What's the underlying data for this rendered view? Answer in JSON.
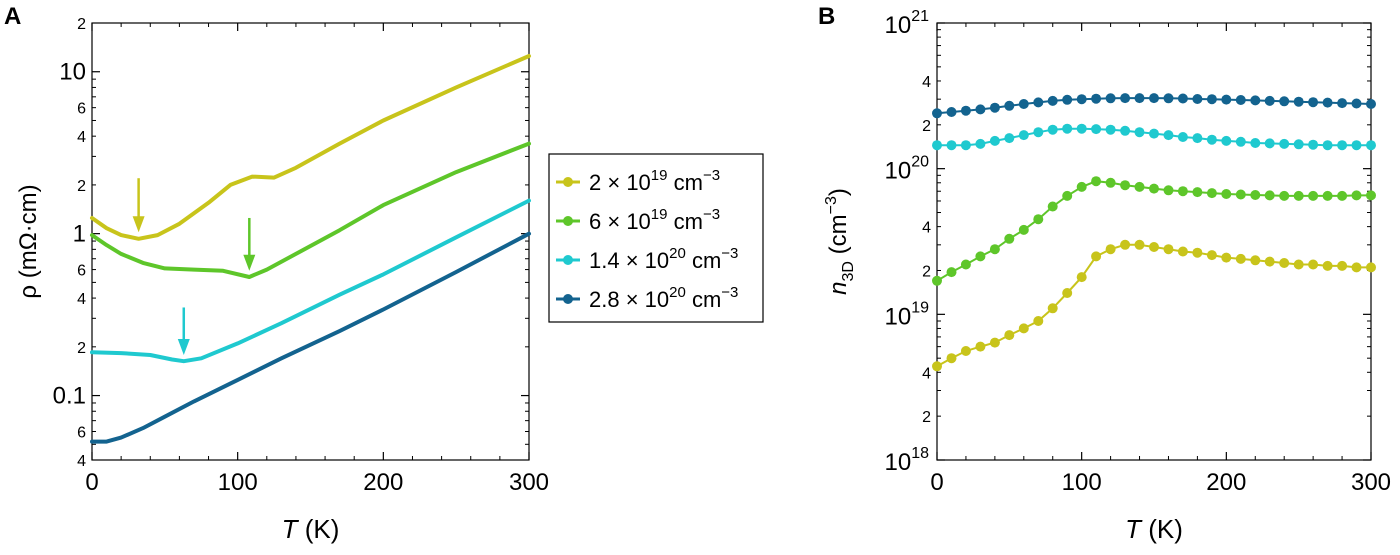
{
  "chart_data": [
    {
      "panel": "A",
      "type": "line",
      "xlabel_var": "T",
      "xlabel_unit": " (K)",
      "ylabel": "ρ (mΩ·cm)",
      "yscale": "log",
      "xlim": [
        0,
        300
      ],
      "ylim": [
        0.04,
        20
      ],
      "x_ticks": [
        0,
        100,
        200,
        300
      ],
      "y_major_ticks": [
        {
          "v": 0.1,
          "l": "0.1"
        },
        {
          "v": 1,
          "l": "1"
        },
        {
          "v": 10,
          "l": "10"
        }
      ],
      "y_minor_labels": [
        {
          "v": 0.04,
          "l": "4"
        },
        {
          "v": 0.06,
          "l": "6"
        },
        {
          "v": 0.2,
          "l": "2"
        },
        {
          "v": 0.4,
          "l": "4"
        },
        {
          "v": 0.6,
          "l": "6"
        },
        {
          "v": 2,
          "l": "2"
        },
        {
          "v": 4,
          "l": "4"
        },
        {
          "v": 6,
          "l": "6"
        },
        {
          "v": 20,
          "l": "2"
        }
      ],
      "legend": [
        {
          "mant": "2",
          "exp": "19",
          "unit_exp": "−3"
        },
        {
          "mant": "6",
          "exp": "19",
          "unit_exp": "−3"
        },
        {
          "mant": "1.4",
          "exp": "20",
          "unit_exp": "−3"
        },
        {
          "mant": "2.8",
          "exp": "20",
          "unit_exp": "−3"
        }
      ],
      "legend_placement": "right",
      "series": [
        {
          "color": "#c8c41b",
          "points": [
            [
              0,
              1.25
            ],
            [
              10,
              1.08
            ],
            [
              20,
              0.98
            ],
            [
              32,
              0.93
            ],
            [
              45,
              0.98
            ],
            [
              60,
              1.15
            ],
            [
              80,
              1.55
            ],
            [
              95,
              2.0
            ],
            [
              110,
              2.25
            ],
            [
              125,
              2.22
            ],
            [
              140,
              2.55
            ],
            [
              170,
              3.6
            ],
            [
              200,
              5.0
            ],
            [
              250,
              8.0
            ],
            [
              300,
              12.5
            ]
          ]
        },
        {
          "color": "#5ec62a",
          "points": [
            [
              0,
              0.98
            ],
            [
              10,
              0.85
            ],
            [
              20,
              0.75
            ],
            [
              35,
              0.66
            ],
            [
              50,
              0.61
            ],
            [
              70,
              0.6
            ],
            [
              90,
              0.59
            ],
            [
              108,
              0.54
            ],
            [
              120,
              0.6
            ],
            [
              140,
              0.75
            ],
            [
              170,
              1.05
            ],
            [
              200,
              1.5
            ],
            [
              250,
              2.4
            ],
            [
              300,
              3.6
            ]
          ]
        },
        {
          "color": "#1fc9cf",
          "points": [
            [
              0,
              0.185
            ],
            [
              20,
              0.183
            ],
            [
              40,
              0.178
            ],
            [
              55,
              0.167
            ],
            [
              63,
              0.163
            ],
            [
              75,
              0.17
            ],
            [
              100,
              0.21
            ],
            [
              130,
              0.28
            ],
            [
              170,
              0.42
            ],
            [
              200,
              0.56
            ],
            [
              250,
              0.95
            ],
            [
              300,
              1.6
            ]
          ]
        },
        {
          "color": "#13638f",
          "points": [
            [
              0,
              0.052
            ],
            [
              10,
              0.052
            ],
            [
              20,
              0.055
            ],
            [
              35,
              0.063
            ],
            [
              50,
              0.074
            ],
            [
              70,
              0.092
            ],
            [
              100,
              0.125
            ],
            [
              130,
              0.17
            ],
            [
              170,
              0.25
            ],
            [
              200,
              0.34
            ],
            [
              250,
              0.58
            ],
            [
              300,
              1.0
            ]
          ]
        }
      ],
      "arrows": [
        {
          "color": "#c8c41b",
          "x": 32,
          "y_tail": 2.2,
          "y_head": 1.02
        },
        {
          "color": "#5ec62a",
          "x": 108,
          "y_tail": 1.25,
          "y_head": 0.59
        },
        {
          "color": "#1fc9cf",
          "x": 63,
          "y_tail": 0.35,
          "y_head": 0.178
        }
      ]
    },
    {
      "panel": "B",
      "type": "scatter",
      "xlabel_var": "T",
      "xlabel_unit": " (K)",
      "ylabel_var": "n",
      "ylabel_sub": "3D",
      "ylabel_unit": " (cm",
      "ylabel_exp": "−3",
      "ylabel_close": ")",
      "yscale": "log",
      "xlim": [
        0,
        300
      ],
      "ylim": [
        1e+18,
        1e+21
      ],
      "x_ticks": [
        0,
        100,
        200,
        300
      ],
      "y_major_ticks": [
        {
          "v": 1e+18,
          "e": "18"
        },
        {
          "v": 1e+19,
          "e": "19"
        },
        {
          "v": 1e+20,
          "e": "20"
        },
        {
          "v": 1e+21,
          "e": "21"
        }
      ],
      "y_major_base": "10",
      "y_minor_labels": [
        {
          "v": 2e+18,
          "l": "2"
        },
        {
          "v": 4e+18,
          "l": "4"
        },
        {
          "v": 2e+19,
          "l": "2"
        },
        {
          "v": 4e+19,
          "l": "4"
        },
        {
          "v": 2e+20,
          "l": "2"
        },
        {
          "v": 4e+20,
          "l": "4"
        }
      ],
      "series": [
        {
          "color": "#c8c41b",
          "points": [
            [
              0,
              4.4e+18
            ],
            [
              10,
              5e+18
            ],
            [
              20,
              5.6e+18
            ],
            [
              30,
              6e+18
            ],
            [
              40,
              6.4e+18
            ],
            [
              50,
              7.2e+18
            ],
            [
              60,
              8e+18
            ],
            [
              70,
              9e+18
            ],
            [
              80,
              1.1e+19
            ],
            [
              90,
              1.4e+19
            ],
            [
              100,
              1.8e+19
            ],
            [
              110,
              2.5e+19
            ],
            [
              120,
              2.8e+19
            ],
            [
              130,
              3e+19
            ],
            [
              140,
              3e+19
            ],
            [
              150,
              2.9e+19
            ],
            [
              160,
              2.8e+19
            ],
            [
              170,
              2.7e+19
            ],
            [
              180,
              2.65e+19
            ],
            [
              190,
              2.55e+19
            ],
            [
              200,
              2.45e+19
            ],
            [
              210,
              2.4e+19
            ],
            [
              220,
              2.35e+19
            ],
            [
              230,
              2.3e+19
            ],
            [
              240,
              2.25e+19
            ],
            [
              250,
              2.2e+19
            ],
            [
              260,
              2.2e+19
            ],
            [
              270,
              2.15e+19
            ],
            [
              280,
              2.15e+19
            ],
            [
              290,
              2.1e+19
            ],
            [
              300,
              2.1e+19
            ]
          ]
        },
        {
          "color": "#5ec62a",
          "points": [
            [
              0,
              1.7e+19
            ],
            [
              10,
              1.95e+19
            ],
            [
              20,
              2.2e+19
            ],
            [
              30,
              2.5e+19
            ],
            [
              40,
              2.8e+19
            ],
            [
              50,
              3.3e+19
            ],
            [
              60,
              3.8e+19
            ],
            [
              70,
              4.5e+19
            ],
            [
              80,
              5.5e+19
            ],
            [
              90,
              6.5e+19
            ],
            [
              100,
              7.5e+19
            ],
            [
              110,
              8.2e+19
            ],
            [
              120,
              8e+19
            ],
            [
              130,
              7.7e+19
            ],
            [
              140,
              7.5e+19
            ],
            [
              150,
              7.3e+19
            ],
            [
              160,
              7.1e+19
            ],
            [
              170,
              7e+19
            ],
            [
              180,
              6.9e+19
            ],
            [
              190,
              6.8e+19
            ],
            [
              200,
              6.7e+19
            ],
            [
              210,
              6.65e+19
            ],
            [
              220,
              6.6e+19
            ],
            [
              230,
              6.55e+19
            ],
            [
              240,
              6.5e+19
            ],
            [
              250,
              6.5e+19
            ],
            [
              260,
              6.5e+19
            ],
            [
              270,
              6.5e+19
            ],
            [
              280,
              6.5e+19
            ],
            [
              290,
              6.55e+19
            ],
            [
              300,
              6.55e+19
            ]
          ]
        },
        {
          "color": "#1fc9cf",
          "points": [
            [
              0,
              1.45e+20
            ],
            [
              10,
              1.45e+20
            ],
            [
              20,
              1.45e+20
            ],
            [
              30,
              1.48e+20
            ],
            [
              40,
              1.55e+20
            ],
            [
              50,
              1.62e+20
            ],
            [
              60,
              1.7e+20
            ],
            [
              70,
              1.78e+20
            ],
            [
              80,
              1.85e+20
            ],
            [
              90,
              1.88e+20
            ],
            [
              100,
              1.88e+20
            ],
            [
              110,
              1.87e+20
            ],
            [
              120,
              1.85e+20
            ],
            [
              130,
              1.82e+20
            ],
            [
              140,
              1.78e+20
            ],
            [
              150,
              1.74e+20
            ],
            [
              160,
              1.7e+20
            ],
            [
              170,
              1.65e+20
            ],
            [
              180,
              1.62e+20
            ],
            [
              190,
              1.58e+20
            ],
            [
              200,
              1.55e+20
            ],
            [
              210,
              1.53e+20
            ],
            [
              220,
              1.5e+20
            ],
            [
              230,
              1.49e+20
            ],
            [
              240,
              1.48e+20
            ],
            [
              250,
              1.47e+20
            ],
            [
              260,
              1.46e+20
            ],
            [
              270,
              1.45e+20
            ],
            [
              280,
              1.45e+20
            ],
            [
              290,
              1.45e+20
            ],
            [
              300,
              1.45e+20
            ]
          ]
        },
        {
          "color": "#13638f",
          "points": [
            [
              0,
              2.4e+20
            ],
            [
              10,
              2.45e+20
            ],
            [
              20,
              2.5e+20
            ],
            [
              30,
              2.55e+20
            ],
            [
              40,
              2.62e+20
            ],
            [
              50,
              2.7e+20
            ],
            [
              60,
              2.78e+20
            ],
            [
              70,
              2.85e+20
            ],
            [
              80,
              2.92e+20
            ],
            [
              90,
              2.97e+20
            ],
            [
              100,
              3e+20
            ],
            [
              110,
              3.02e+20
            ],
            [
              120,
              3.04e+20
            ],
            [
              130,
              3.05e+20
            ],
            [
              140,
              3.05e+20
            ],
            [
              150,
              3.05e+20
            ],
            [
              160,
              3.04e+20
            ],
            [
              170,
              3.03e+20
            ],
            [
              180,
              3.01e+20
            ],
            [
              190,
              3e+20
            ],
            [
              200,
              2.98e+20
            ],
            [
              210,
              2.96e+20
            ],
            [
              220,
              2.94e+20
            ],
            [
              230,
              2.92e+20
            ],
            [
              240,
              2.9e+20
            ],
            [
              250,
              2.88e+20
            ],
            [
              260,
              2.86e+20
            ],
            [
              270,
              2.84e+20
            ],
            [
              280,
              2.82e+20
            ],
            [
              290,
              2.8e+20
            ],
            [
              300,
              2.78e+20
            ]
          ]
        }
      ]
    }
  ]
}
